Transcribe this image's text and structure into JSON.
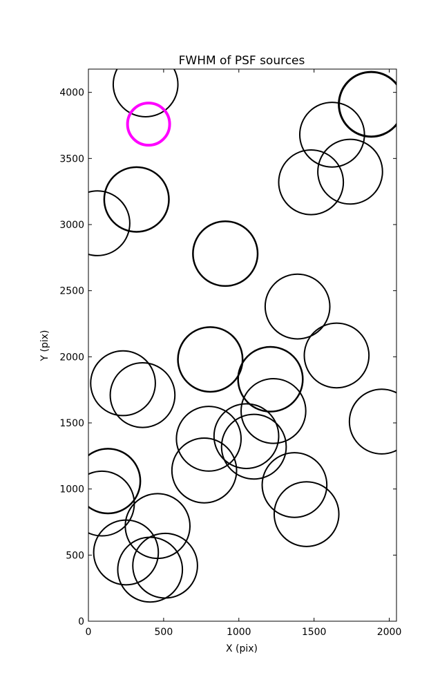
{
  "chart_data": {
    "type": "scatter",
    "title": "FWHM of PSF sources",
    "xlabel": "X (pix)",
    "ylabel": "Y (pix)",
    "xlim": [
      0,
      2048
    ],
    "ylim": [
      0,
      4176
    ],
    "xticks": [
      0,
      500,
      1000,
      1500,
      2000
    ],
    "yticks": [
      0,
      500,
      1000,
      1500,
      2000,
      2500,
      3000,
      3500,
      4000
    ],
    "xtick_labels": [
      "0",
      "500",
      "1000",
      "1500",
      "2000"
    ],
    "ytick_labels": [
      "0",
      "500",
      "1000",
      "1500",
      "2000",
      "2500",
      "3000",
      "3500",
      "4000"
    ],
    "grid": false,
    "marker": "open-circle",
    "colors": {
      "default": "#000000",
      "highlight": "#ff00ff"
    },
    "points": [
      {
        "x": 380,
        "y": 4060,
        "r": 215,
        "w": 2
      },
      {
        "x": 1880,
        "y": 3910,
        "r": 215,
        "w": 3
      },
      {
        "x": 1620,
        "y": 3680,
        "r": 215,
        "w": 2
      },
      {
        "x": 1740,
        "y": 3400,
        "r": 215,
        "w": 2
      },
      {
        "x": 1480,
        "y": 3320,
        "r": 215,
        "w": 2
      },
      {
        "x": 320,
        "y": 3190,
        "r": 215,
        "w": 2.5
      },
      {
        "x": 60,
        "y": 3010,
        "r": 215,
        "w": 2
      },
      {
        "x": 910,
        "y": 2780,
        "r": 215,
        "w": 2.5
      },
      {
        "x": 1390,
        "y": 2380,
        "r": 215,
        "w": 2
      },
      {
        "x": 1650,
        "y": 2010,
        "r": 215,
        "w": 2
      },
      {
        "x": 810,
        "y": 1980,
        "r": 215,
        "w": 2.5
      },
      {
        "x": 230,
        "y": 1800,
        "r": 215,
        "w": 2
      },
      {
        "x": 1210,
        "y": 1830,
        "r": 215,
        "w": 2.5
      },
      {
        "x": 360,
        "y": 1710,
        "r": 215,
        "w": 2
      },
      {
        "x": 1230,
        "y": 1590,
        "r": 215,
        "w": 2
      },
      {
        "x": 1950,
        "y": 1510,
        "r": 215,
        "w": 2
      },
      {
        "x": 800,
        "y": 1380,
        "r": 215,
        "w": 2
      },
      {
        "x": 1050,
        "y": 1400,
        "r": 215,
        "w": 2
      },
      {
        "x": 1100,
        "y": 1320,
        "r": 215,
        "w": 2
      },
      {
        "x": 770,
        "y": 1140,
        "r": 215,
        "w": 2
      },
      {
        "x": 130,
        "y": 1060,
        "r": 215,
        "w": 2.5
      },
      {
        "x": 1370,
        "y": 1030,
        "r": 215,
        "w": 2
      },
      {
        "x": 90,
        "y": 890,
        "r": 215,
        "w": 2
      },
      {
        "x": 1450,
        "y": 810,
        "r": 215,
        "w": 2
      },
      {
        "x": 460,
        "y": 720,
        "r": 215,
        "w": 2
      },
      {
        "x": 250,
        "y": 520,
        "r": 215,
        "w": 2
      },
      {
        "x": 510,
        "y": 420,
        "r": 215,
        "w": 2
      },
      {
        "x": 410,
        "y": 390,
        "r": 215,
        "w": 2
      },
      {
        "x": 400,
        "y": 3760,
        "r": 140,
        "w": 4,
        "highlight": true
      }
    ]
  }
}
